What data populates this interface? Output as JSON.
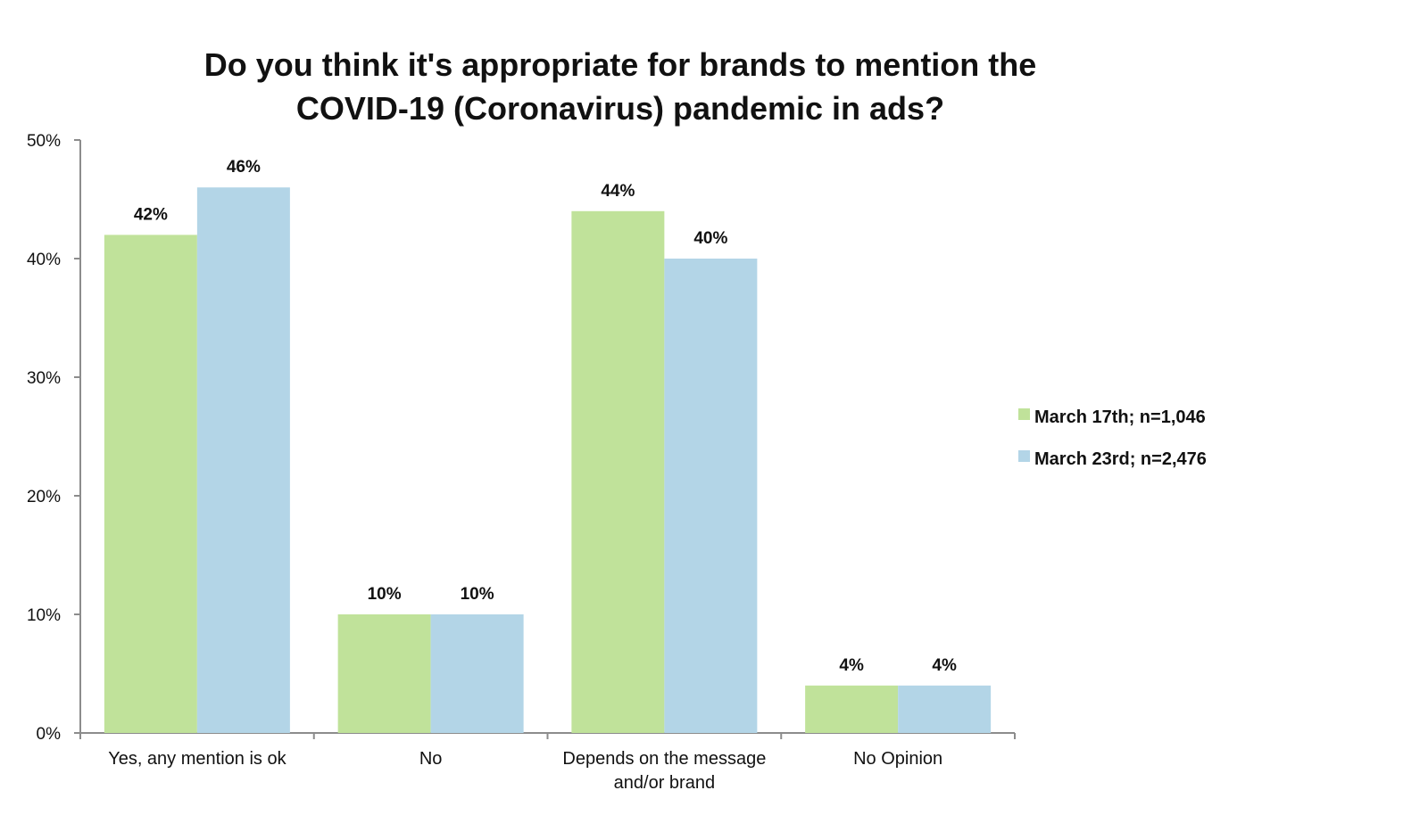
{
  "chart_data": {
    "type": "bar",
    "title_lines": [
      "Do you think it's appropriate for brands to mention the",
      "COVID-19 (Coronavirus) pandemic in ads?"
    ],
    "categories": [
      [
        "Yes, any mention is ok"
      ],
      [
        "No"
      ],
      [
        "Depends on the message",
        "and/or brand"
      ],
      [
        "No Opinion"
      ]
    ],
    "series": [
      {
        "name": "March 17th; n=1,046",
        "color": "#c0e29a",
        "values": [
          42,
          10,
          44,
          4
        ]
      },
      {
        "name": "March 23rd; n=2,476",
        "color": "#b3d5e7",
        "values": [
          46,
          10,
          40,
          4
        ]
      }
    ],
    "ylim": [
      0,
      50
    ],
    "yticks": [
      0,
      10,
      20,
      30,
      40,
      50
    ],
    "tick_suffix": "%",
    "data_label_suffix": "%",
    "grid": false,
    "legend_position": "right"
  }
}
